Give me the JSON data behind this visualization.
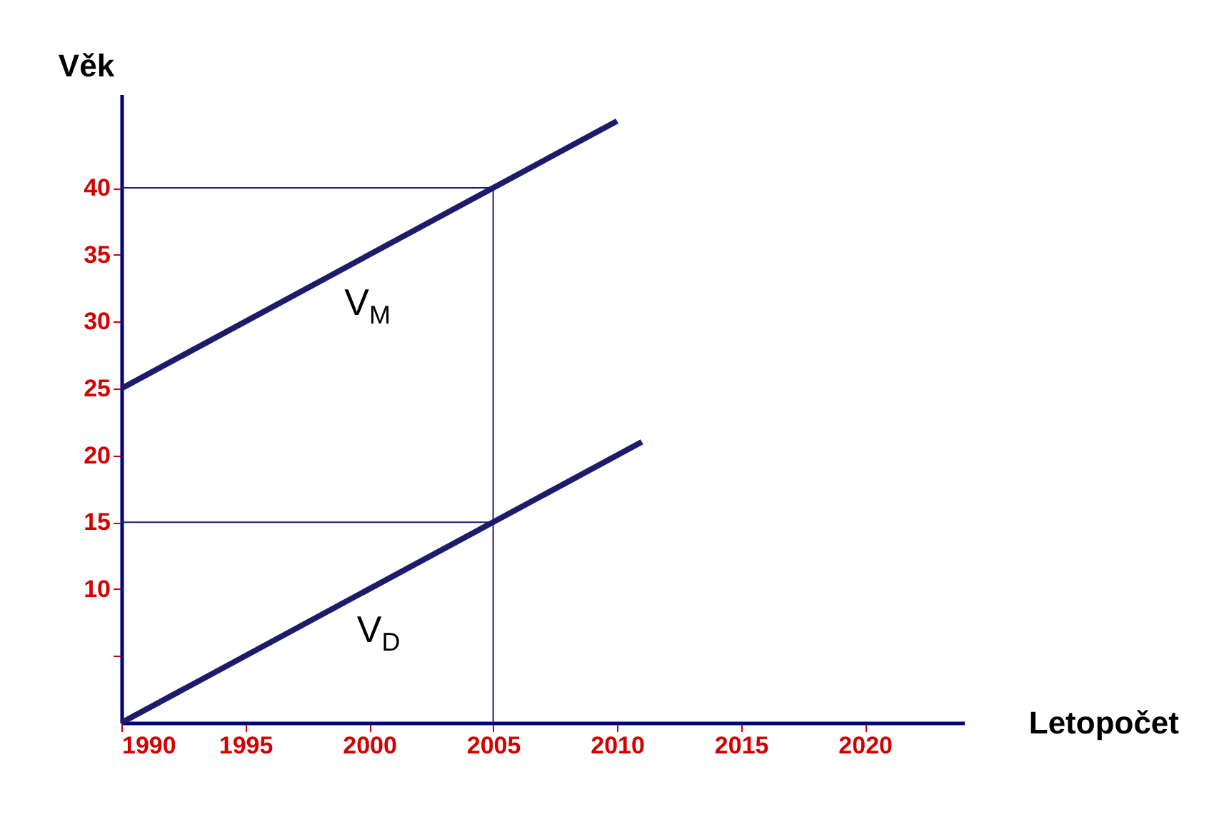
{
  "chart_data": {
    "type": "line",
    "xlabel": "Letopočet",
    "ylabel": "Věk",
    "xlim": [
      1990,
      2024
    ],
    "ylim": [
      0,
      47
    ],
    "xticks": [
      1990,
      1995,
      2000,
      2005,
      2010,
      2015,
      2020
    ],
    "yticks": [
      {
        "value": 5,
        "label": null
      },
      10,
      15,
      20,
      25,
      30,
      35,
      40
    ],
    "series": [
      {
        "color": "#1c1c6b",
        "x": [
          1990,
          2010
        ],
        "values": [
          25,
          45
        ]
      },
      {
        "color": "#1c1c6b",
        "x": [
          1990,
          2011
        ],
        "values": [
          0,
          21
        ]
      }
    ],
    "ref_lines": [
      {
        "axis": "y",
        "value": 40,
        "color": "#1c1c6b"
      },
      {
        "axis": "y",
        "value": 15,
        "color": "#1c1c6b"
      },
      {
        "axis": "x",
        "value": 2005,
        "color": "#1c1c6b"
      }
    ],
    "annotations": [
      "V$_{M}$",
      "V$_{D}$"
    ],
    "grid": false,
    "marker": "none",
    "line_style": "solid"
  }
}
